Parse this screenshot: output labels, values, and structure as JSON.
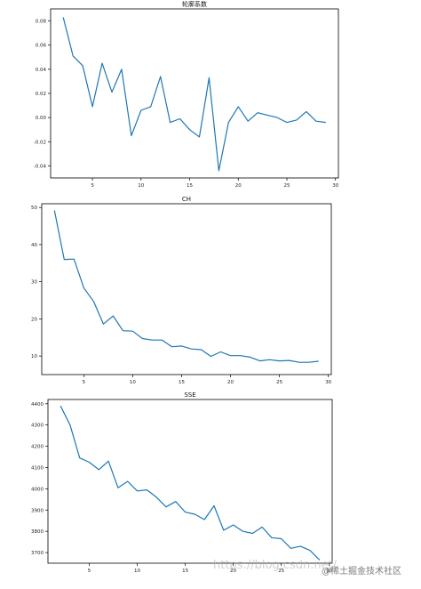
{
  "watermark": {
    "url": "https://blog.csdn.net/",
    "brand": "@稀土掘金技术社区"
  },
  "chart_data": [
    {
      "type": "line",
      "title": "轮廓系数",
      "xlabel": "",
      "ylabel": "",
      "xlim": [
        0.7,
        30.3
      ],
      "ylim": [
        -0.05,
        0.09
      ],
      "xticks": [
        5,
        10,
        15,
        20,
        25,
        30
      ],
      "yticks": [
        -0.04,
        -0.02,
        0.0,
        0.02,
        0.04,
        0.06,
        0.08
      ],
      "ytick_labels": [
        "-0.04",
        "-0.02",
        "0.00",
        "0.02",
        "0.04",
        "0.06",
        "0.08"
      ],
      "grid": false,
      "color": "#1f77b4",
      "x": [
        2,
        3,
        4,
        5,
        6,
        7,
        8,
        9,
        10,
        11,
        12,
        13,
        14,
        15,
        16,
        17,
        18,
        19,
        20,
        21,
        22,
        23,
        24,
        25,
        26,
        27,
        28,
        29
      ],
      "y": [
        0.083,
        0.051,
        0.043,
        0.009,
        0.045,
        0.021,
        0.04,
        -0.015,
        0.006,
        0.009,
        0.034,
        -0.004,
        -0.001,
        -0.01,
        -0.016,
        0.033,
        -0.044,
        -0.004,
        0.009,
        -0.003,
        0.004,
        0.002,
        0.0,
        -0.004,
        -0.002,
        0.005,
        -0.003,
        -0.004
      ]
    },
    {
      "type": "line",
      "title": "CH",
      "xlabel": "",
      "ylabel": "",
      "xlim": [
        0.7,
        30.3
      ],
      "ylim": [
        5,
        51
      ],
      "xticks": [
        5,
        10,
        15,
        20,
        25,
        30
      ],
      "yticks": [
        10,
        20,
        30,
        40,
        50
      ],
      "ytick_labels": [
        "10",
        "20",
        "30",
        "40",
        "50"
      ],
      "grid": false,
      "color": "#1f77b4",
      "x": [
        2,
        3,
        4,
        5,
        6,
        7,
        8,
        9,
        10,
        11,
        12,
        13,
        14,
        15,
        16,
        17,
        18,
        19,
        20,
        21,
        22,
        23,
        24,
        25,
        26,
        27,
        28,
        29
      ],
      "y": [
        49.2,
        36.0,
        36.1,
        28.3,
        24.7,
        18.6,
        20.8,
        16.8,
        16.7,
        14.7,
        14.3,
        14.3,
        12.5,
        12.7,
        11.9,
        11.7,
        9.9,
        11.1,
        10.1,
        10.1,
        9.7,
        8.7,
        9.0,
        8.7,
        8.8,
        8.3,
        8.3,
        8.6
      ]
    },
    {
      "type": "line",
      "title": "SSE",
      "xlabel": "",
      "ylabel": "",
      "xlim": [
        0.7,
        30.3
      ],
      "ylim": [
        3650,
        4420
      ],
      "xticks": [
        5,
        10,
        15,
        20,
        25,
        30
      ],
      "yticks": [
        3700,
        3800,
        3900,
        4000,
        4100,
        4200,
        4300,
        4400
      ],
      "ytick_labels": [
        "3700",
        "3800",
        "3900",
        "4000",
        "4100",
        "4200",
        "4300",
        "4400"
      ],
      "grid": false,
      "color": "#1f77b4",
      "x": [
        2,
        3,
        4,
        5,
        6,
        7,
        8,
        9,
        10,
        11,
        12,
        13,
        14,
        15,
        16,
        17,
        18,
        19,
        20,
        21,
        22,
        23,
        24,
        25,
        26,
        27,
        28,
        29
      ],
      "y": [
        4390,
        4300,
        4145,
        4125,
        4090,
        4130,
        4005,
        4035,
        3990,
        3995,
        3960,
        3915,
        3940,
        3890,
        3880,
        3855,
        3920,
        3805,
        3830,
        3800,
        3790,
        3820,
        3770,
        3765,
        3720,
        3730,
        3710,
        3665
      ]
    }
  ]
}
